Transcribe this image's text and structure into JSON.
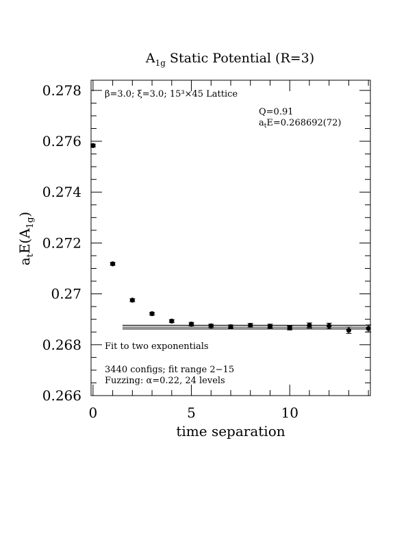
{
  "chart_data": {
    "type": "scatter",
    "title": "A",
    "title_sub": "1g",
    "title_rest": " Static Potential (R=3)",
    "xlabel": "time separation",
    "ylabel_main": "a",
    "ylabel_sub1": "t",
    "ylabel_mid": "E(A",
    "ylabel_sub2": "1g",
    "ylabel_end": ")",
    "xlim": [
      -0.1,
      14.1
    ],
    "ylim": [
      0.266,
      0.2784
    ],
    "x_ticks": [
      0,
      5,
      10
    ],
    "x_tick_labels": [
      "0",
      "5",
      "10"
    ],
    "y_ticks": [
      0.266,
      0.268,
      0.27,
      0.272,
      0.274,
      0.276,
      0.278
    ],
    "y_tick_labels": [
      "0.266",
      "0.268",
      "0.27",
      "0.272",
      "0.274",
      "0.276",
      "0.278"
    ],
    "points": {
      "x": [
        0,
        1,
        2,
        3,
        4,
        5,
        6,
        7,
        8,
        9,
        10,
        11,
        12,
        13,
        14
      ],
      "y": [
        0.27583,
        0.27118,
        0.26975,
        0.26922,
        0.26893,
        0.26881,
        0.26874,
        0.26871,
        0.26876,
        0.26873,
        0.26866,
        0.26876,
        0.26874,
        0.26857,
        0.26864
      ],
      "err": [
        3e-05,
        3e-05,
        3e-05,
        3e-05,
        3e-05,
        4e-05,
        4e-05,
        4e-05,
        5e-05,
        5e-05,
        5e-05,
        7e-05,
        8e-05,
        0.0001,
        0.00011
      ]
    },
    "fit": {
      "x_range": [
        1.5,
        14.1
      ],
      "center": 0.268692,
      "error": 7.2e-05
    },
    "annotations": {
      "lattice": "β=3.0; ξ=3.0; 15³×45 Lattice",
      "q_value": "Q=0.91",
      "energy_main": "a",
      "energy_sub": "t",
      "energy_rest": "E=0.268692(72)",
      "fit_desc": "Fit to two exponentials",
      "configs": "3440 configs; fit range 2−15",
      "fuzzing": "Fuzzing: α=0.22, 24 levels"
    },
    "grid": false
  }
}
